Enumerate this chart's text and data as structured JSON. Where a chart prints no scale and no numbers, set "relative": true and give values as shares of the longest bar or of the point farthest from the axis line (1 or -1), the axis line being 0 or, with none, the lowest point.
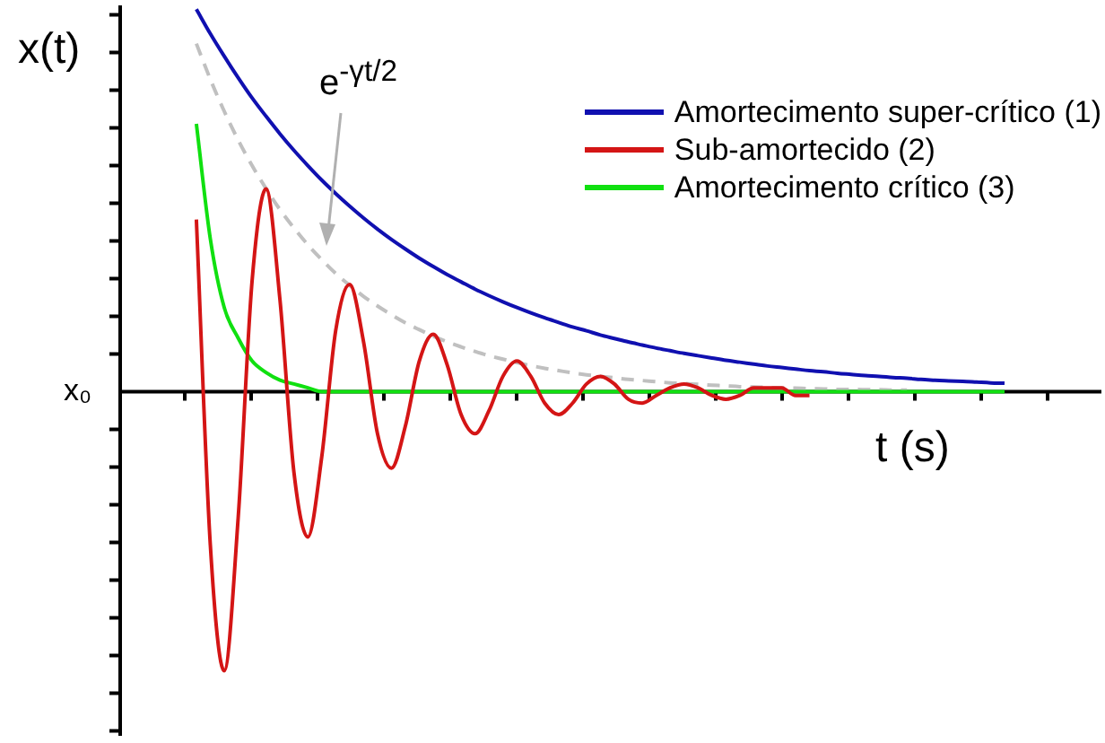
{
  "chart_data": {
    "type": "line",
    "relative": true,
    "xlabel": "t (s)",
    "ylabel": "x(t)",
    "legend": "top right",
    "marker": "none",
    "annotations": [
      "e$^{-γt/2}$",
      "x₀"
    ],
    "categories": [
      null,
      null,
      null,
      null,
      null,
      null,
      null,
      null,
      null,
      null,
      null,
      null,
      null,
      null,
      null,
      null,
      null,
      null,
      null,
      null,
      null,
      null,
      null,
      null,
      null,
      null,
      null,
      null,
      null,
      null,
      null,
      null,
      null,
      null,
      null,
      null,
      null,
      null,
      null,
      null,
      null,
      null,
      null,
      null,
      null,
      null,
      null,
      null,
      null,
      null,
      null,
      null,
      null,
      null,
      null,
      null,
      null,
      null,
      null,
      null
    ],
    "series": [
      {
        "name": "Amortecimento super-crítico (1)",
        "color": "#1010b0",
        "values": [
          null,
          1,
          0.936,
          0.877,
          0.821,
          0.768,
          0.72,
          0.674,
          0.631,
          0.591,
          0.553,
          0.518,
          0.485,
          0.454,
          0.425,
          0.398,
          0.373,
          0.349,
          0.327,
          0.306,
          0.287,
          0.268,
          0.251,
          0.235,
          0.22,
          0.206,
          0.193,
          0.181,
          0.169,
          0.159,
          0.148,
          0.139,
          0.13,
          0.122,
          0.114,
          0.107,
          0.1,
          0.094,
          0.088,
          0.082,
          0.077,
          0.072,
          0.067,
          0.063,
          0.059,
          0.055,
          0.052,
          0.048,
          0.045,
          0.042,
          0.04,
          0.037,
          0.035,
          0.032,
          0.03,
          0.028,
          0.027,
          0.025,
          0.023,
          0.022
        ]
      },
      {
        "name": "Sub-amortecido (2)",
        "color": "#d41515",
        "values": [
          null,
          0.45,
          -0.4,
          -0.73,
          -0.33,
          0.29,
          0.53,
          0.24,
          -0.21,
          -0.38,
          -0.17,
          0.16,
          0.28,
          0.13,
          -0.11,
          -0.2,
          -0.09,
          0.08,
          0.15,
          0.07,
          -0.06,
          -0.11,
          -0.05,
          0.04,
          0.08,
          0.04,
          -0.03,
          -0.06,
          -0.03,
          0.02,
          0.04,
          0.02,
          -0.02,
          -0.03,
          -0.01,
          0.01,
          0.02,
          0.01,
          -0.01,
          -0.02,
          -0.01,
          0.01,
          0.01,
          0.01,
          -0.01,
          -0.01,
          null,
          null,
          null,
          null,
          null,
          null,
          null,
          null,
          null,
          null,
          null,
          null,
          null,
          null
        ]
      },
      {
        "name": "Amortecimento crítico (3)",
        "color": "#10e010",
        "values": [
          null,
          0.7,
          0.4,
          0.22,
          0.14,
          0.08,
          0.05,
          0.03,
          0.02,
          0.01,
          0,
          0,
          0,
          0,
          0,
          0,
          0,
          0,
          0,
          0,
          0,
          0,
          0,
          0,
          0,
          0,
          0,
          0,
          0,
          0,
          0,
          0,
          0,
          0,
          0,
          0,
          0,
          0,
          0,
          0,
          0,
          0,
          0,
          0,
          0,
          0,
          0,
          0,
          0,
          0,
          0,
          0,
          0,
          0,
          0,
          0,
          0,
          0,
          0,
          0
        ]
      },
      {
        "color": "#c0c0c0",
        "line_style": "dashed",
        "values": [
          null,
          0.91,
          0.817,
          0.733,
          0.658,
          0.591,
          0.531,
          0.476,
          0.428,
          0.384,
          0.345,
          0.309,
          0.278,
          0.249,
          0.224,
          0.201,
          0.18,
          0.162,
          0.145,
          0.13,
          0.117,
          0.105,
          0.094,
          0.085,
          0.076,
          0.068,
          0.061,
          0.055,
          0.049,
          0.044,
          0.04,
          0.036,
          0.032,
          0.029,
          0.026,
          0.023,
          0.021,
          0.019,
          0.017,
          0.015,
          0.013,
          0.012,
          0.011,
          0.01,
          0.009,
          0.008,
          0.007,
          0.006,
          0.006,
          0.005,
          0.005,
          0.004,
          0.004,
          null,
          null,
          null,
          null,
          null,
          null,
          null
        ]
      }
    ]
  }
}
